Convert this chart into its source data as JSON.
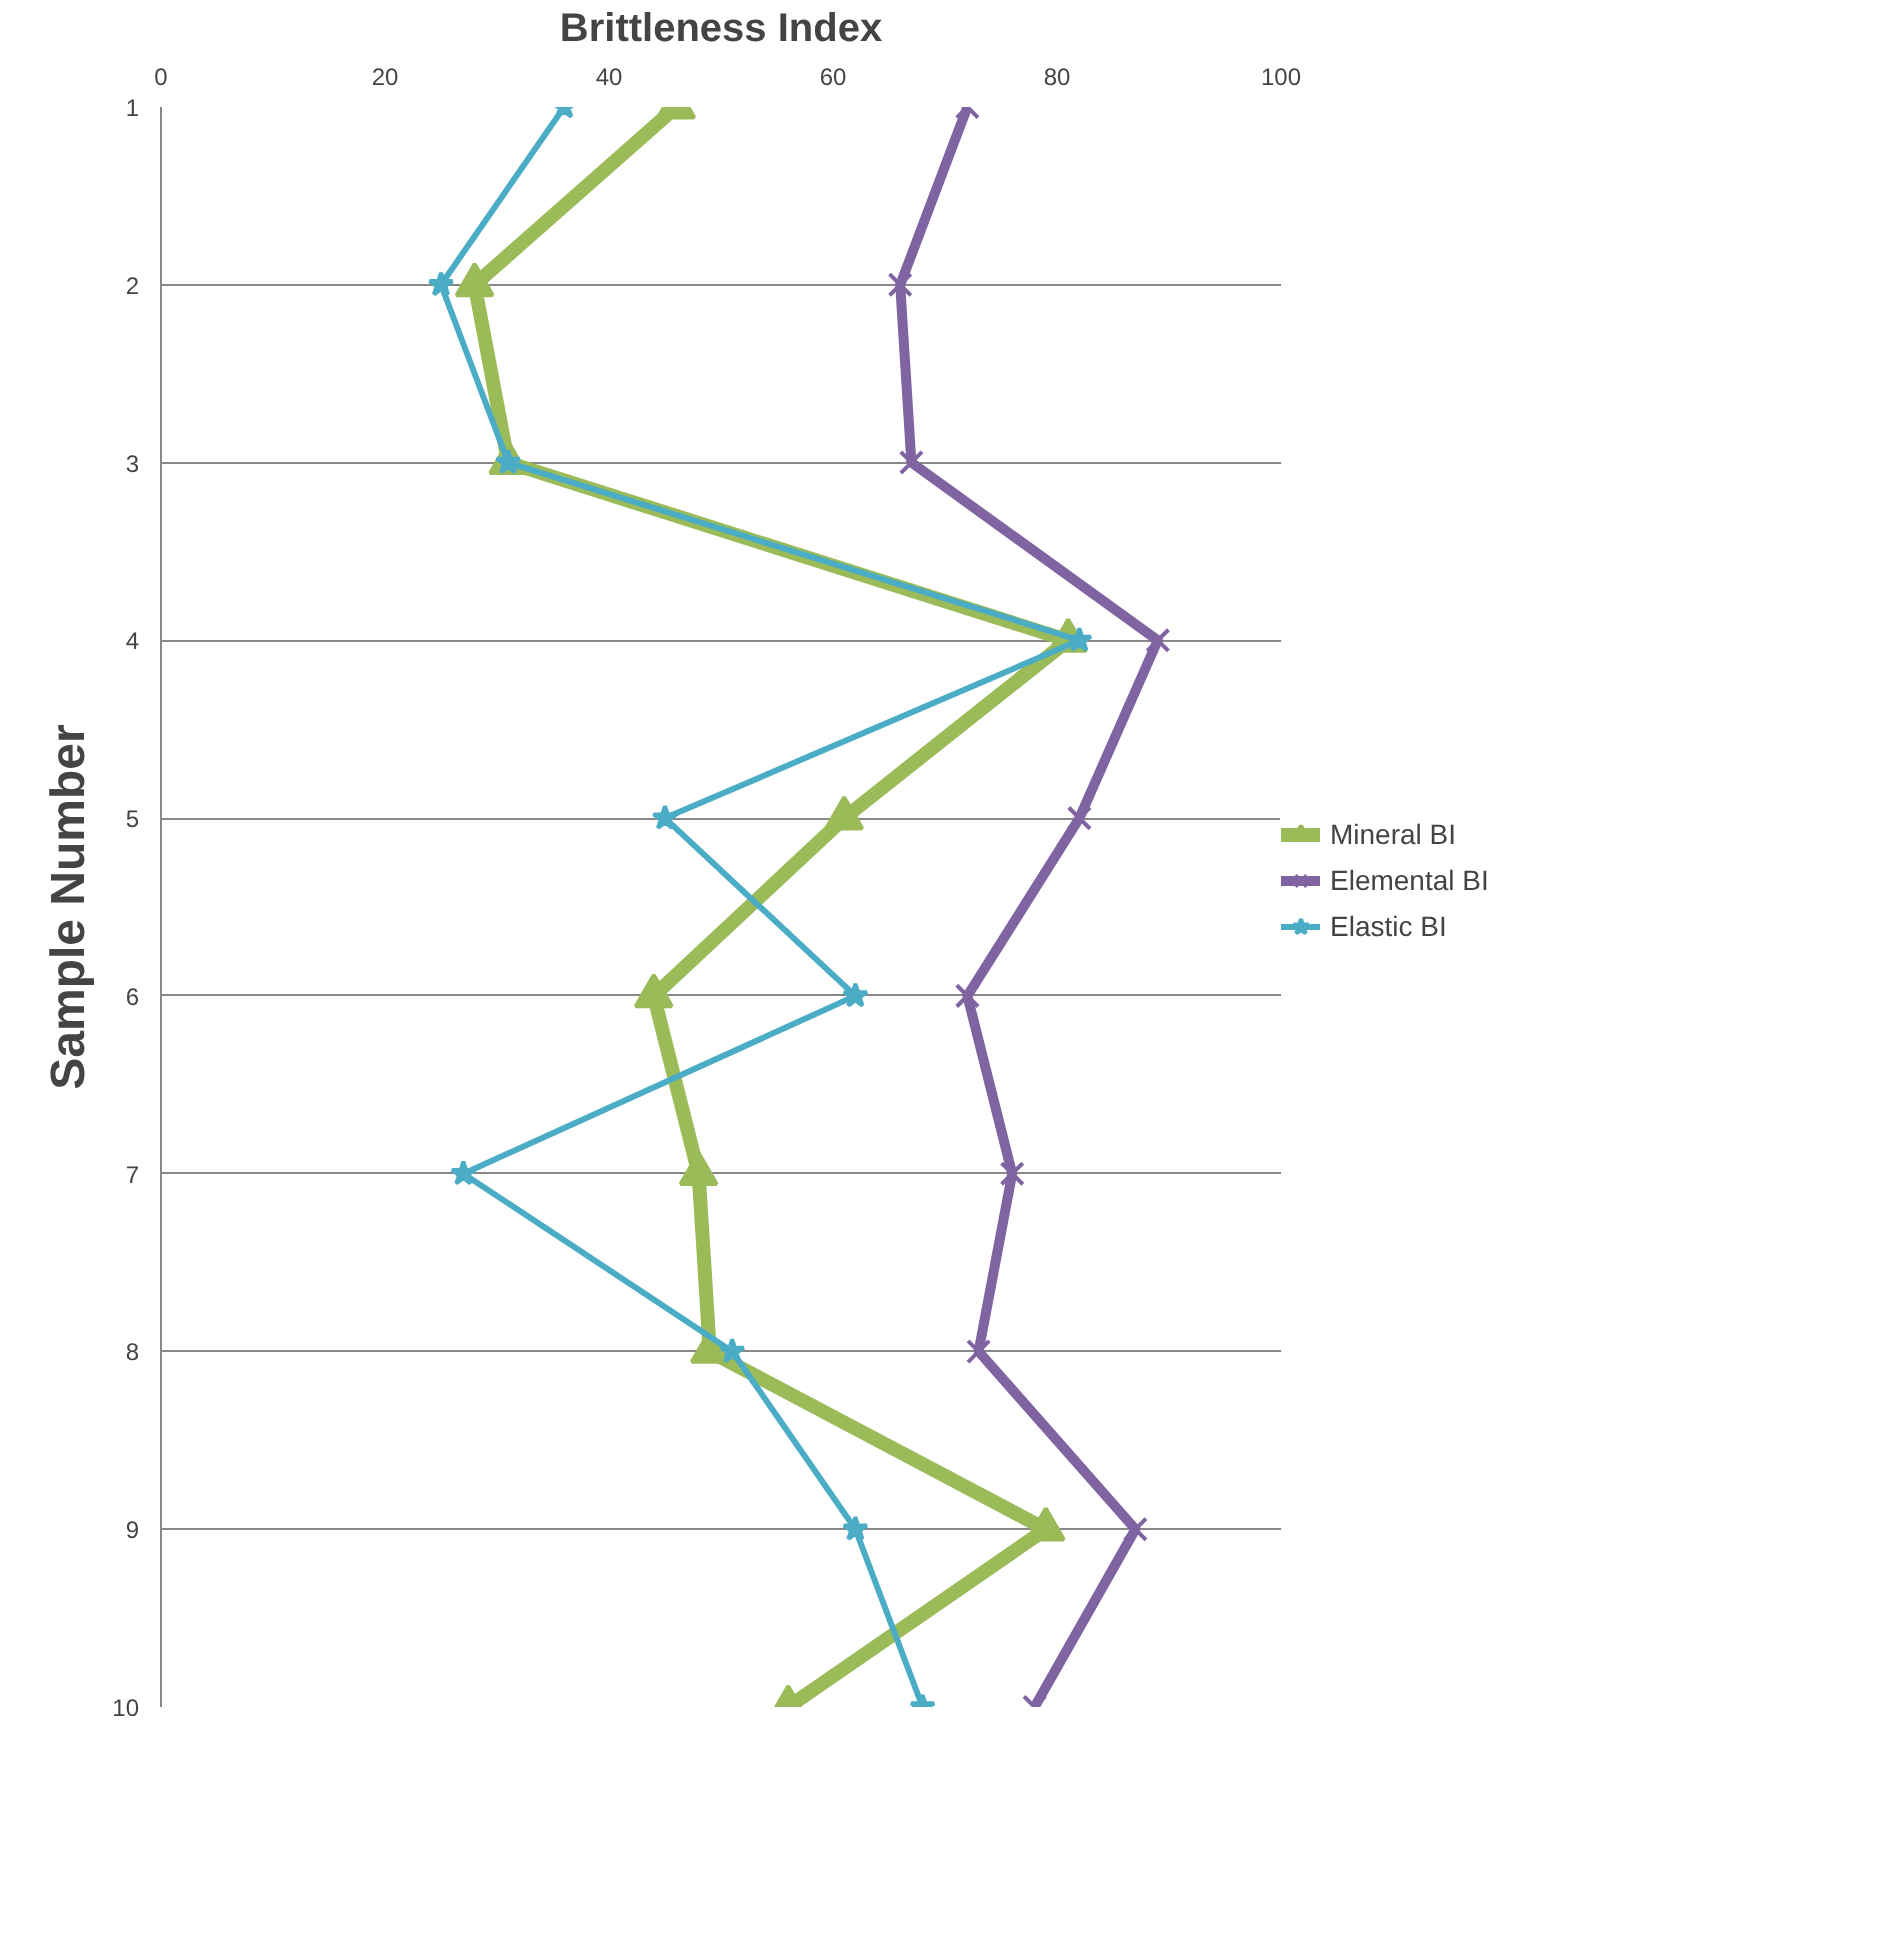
{
  "chart_data": {
    "type": "line",
    "xlabel": "Brittleness Index",
    "ylabel": "Sample Number",
    "xlim": [
      0,
      100
    ],
    "xticks": [
      0,
      20,
      40,
      60,
      80,
      100
    ],
    "ylim": [
      10,
      1
    ],
    "yticks": [
      1,
      2,
      3,
      4,
      5,
      6,
      7,
      8,
      9,
      10
    ],
    "grid": "y",
    "legend": "right",
    "line_style": "solid",
    "series": [
      {
        "name": "Mineral BI",
        "color": "#9bbb59",
        "marker": "triangle",
        "x": [
          46,
          28,
          31,
          81,
          61,
          44,
          48,
          49,
          79,
          56
        ],
        "values": [
          1,
          2,
          3,
          4,
          5,
          6,
          7,
          8,
          9,
          10
        ]
      },
      {
        "name": "Elemental BI",
        "color": "#8064a2",
        "marker": "cross",
        "x": [
          72,
          66,
          67,
          89,
          82,
          72,
          76,
          73,
          87,
          78
        ],
        "values": [
          1,
          2,
          3,
          4,
          5,
          6,
          7,
          8,
          9,
          10
        ]
      },
      {
        "name": "Elastic BI",
        "color": "#4bacc6",
        "marker": "star",
        "x": [
          36,
          25,
          31,
          82,
          45,
          62,
          27,
          51,
          62,
          68
        ],
        "values": [
          1,
          2,
          3,
          4,
          5,
          6,
          7,
          8,
          9,
          10
        ]
      }
    ]
  }
}
